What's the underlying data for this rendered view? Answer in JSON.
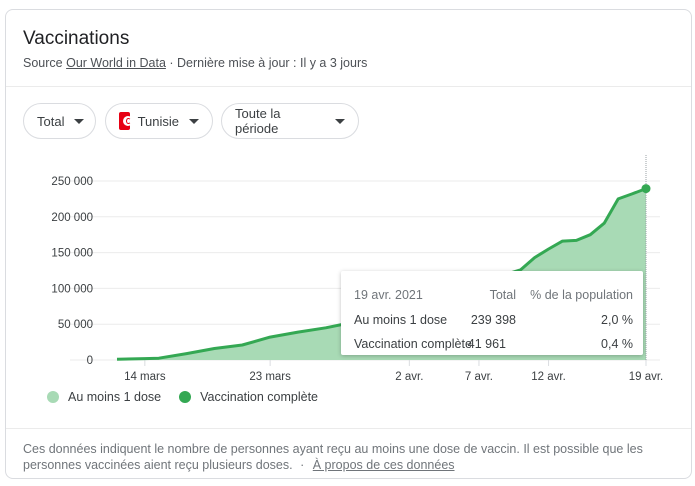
{
  "header": {
    "title": "Vaccinations",
    "source_prefix": "Source",
    "source_link": "Our World in Data",
    "updated": "· Dernière mise à jour : Il y a 3 jours"
  },
  "filters": {
    "metric": "Total",
    "country": "Tunisie",
    "period": "Toute la période"
  },
  "tooltip": {
    "date": "19 avr. 2021",
    "col_total": "Total",
    "col_pct": "% de la population",
    "rows": [
      {
        "label": "Au moins 1 dose",
        "total": "239 398",
        "pct": "2,0 %"
      },
      {
        "label": "Vaccination complète",
        "total": "41 961",
        "pct": "0,4 %"
      }
    ]
  },
  "legend": {
    "items": [
      {
        "label": "Au moins 1 dose",
        "color": "#a8dab5"
      },
      {
        "label": "Vaccination complète",
        "color": "#34a853"
      }
    ]
  },
  "footer": {
    "text": "Ces données indiquent le nombre de personnes ayant reçu au moins une dose de vaccin. Il est possible que les personnes vaccinées aient reçu plusieurs doses.",
    "separator": "·",
    "link": "À propos de ces données"
  },
  "colors": {
    "line": "#34a853",
    "area": "#a8dab5",
    "grid": "#ebebeb"
  },
  "chart_data": {
    "type": "area",
    "title": "Vaccinations",
    "xlabel": "",
    "ylabel": "",
    "ylim": [
      0,
      250000
    ],
    "yticks": [
      "0",
      "50 000",
      "100 000",
      "150 000",
      "200 000",
      "250 000"
    ],
    "xticks": [
      "14 mars",
      "23 mars",
      "2 avr.",
      "7 avr.",
      "12 avr.",
      "19 avr."
    ],
    "grid": true,
    "legend_position": "bottom",
    "x": [
      "12 mars",
      "14 mars",
      "15 mars",
      "17 mars",
      "19 mars",
      "21 mars",
      "23 mars",
      "25 mars",
      "27 mars",
      "29 mars",
      "31 mars",
      "2 avr.",
      "4 avr.",
      "6 avr.",
      "8 avr.",
      "9 avr.",
      "10 avr.",
      "11 avr.",
      "12 avr.",
      "13 avr.",
      "14 avr.",
      "15 avr.",
      "16 avr.",
      "17 avr.",
      "18 avr.",
      "19 avr."
    ],
    "series": [
      {
        "name": "Au moins 1 dose",
        "values": [
          1000,
          2000,
          2500,
          9000,
          16000,
          21000,
          32000,
          39000,
          45000,
          53000,
          72000,
          78000,
          86000,
          100000,
          112000,
          120000,
          126000,
          143000,
          155000,
          166000,
          167000,
          175000,
          191000,
          225000,
          232000,
          239398
        ]
      },
      {
        "name": "Vaccination complète",
        "values_visible": false,
        "last_value": 41961
      }
    ]
  }
}
